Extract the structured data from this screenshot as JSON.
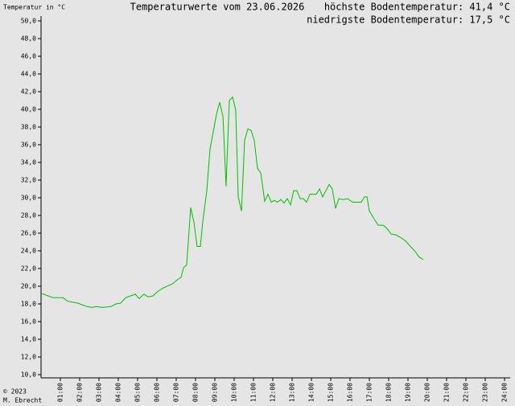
{
  "chart_data": {
    "type": "line",
    "title": "Temperaturwerte vom 23.06.2026",
    "y_label": "Temperatur in °C",
    "annotations": [
      "höchste Bodentemperatur: 41,4 °C",
      "niedrigste Bodentemperatur: 17,5 °C"
    ],
    "footer": [
      "© 2023",
      "M. Ebrecht"
    ],
    "xlim": [
      0,
      24
    ],
    "xticks": [
      {
        "value": 1,
        "label": "01:00"
      },
      {
        "value": 2,
        "label": "02:00"
      },
      {
        "value": 3,
        "label": "03:00"
      },
      {
        "value": 4,
        "label": "04:00"
      },
      {
        "value": 5,
        "label": "05:00"
      },
      {
        "value": 6,
        "label": "06:00"
      },
      {
        "value": 7,
        "label": "07:00"
      },
      {
        "value": 8,
        "label": "08:00"
      },
      {
        "value": 9,
        "label": "09:00"
      },
      {
        "value": 10,
        "label": "10:00"
      },
      {
        "value": 11,
        "label": "11:00"
      },
      {
        "value": 12,
        "label": "12:00"
      },
      {
        "value": 13,
        "label": "13:00"
      },
      {
        "value": 14,
        "label": "14:00"
      },
      {
        "value": 15,
        "label": "15:00"
      },
      {
        "value": 16,
        "label": "16:00"
      },
      {
        "value": 17,
        "label": "17:00"
      },
      {
        "value": 18,
        "label": "18:00"
      },
      {
        "value": 19,
        "label": "19:00"
      },
      {
        "value": 20,
        "label": "20:00"
      },
      {
        "value": 21,
        "label": "21:00"
      },
      {
        "value": 22,
        "label": "22:00"
      },
      {
        "value": 23,
        "label": "23:00"
      },
      {
        "value": 24,
        "label": "24:00"
      }
    ],
    "ylim": [
      10,
      50
    ],
    "yticks": [
      {
        "value": 10,
        "label": "10,0"
      },
      {
        "value": 12,
        "label": "12,0"
      },
      {
        "value": 14,
        "label": "14,0"
      },
      {
        "value": 16,
        "label": "16,0"
      },
      {
        "value": 18,
        "label": "18,0"
      },
      {
        "value": 20,
        "label": "20,0"
      },
      {
        "value": 22,
        "label": "22,0"
      },
      {
        "value": 24,
        "label": "24,0"
      },
      {
        "value": 26,
        "label": "26,0"
      },
      {
        "value": 28,
        "label": "28,0"
      },
      {
        "value": 30,
        "label": "30,0"
      },
      {
        "value": 32,
        "label": "32,0"
      },
      {
        "value": 34,
        "label": "34,0"
      },
      {
        "value": 36,
        "label": "36,0"
      },
      {
        "value": 38,
        "label": "38,0"
      },
      {
        "value": 40,
        "label": "40,0"
      },
      {
        "value": 42,
        "label": "42,0"
      },
      {
        "value": 44,
        "label": "44,0"
      },
      {
        "value": 46,
        "label": "46,0"
      },
      {
        "value": 48,
        "label": "48,0"
      },
      {
        "value": 50,
        "label": "50,0"
      }
    ],
    "color": "#00c000",
    "x": [
      0,
      0.38,
      0.63,
      1.13,
      1.38,
      1.88,
      2.13,
      2.38,
      2.63,
      2.88,
      3.13,
      3.63,
      3.88,
      4.13,
      4.38,
      4.63,
      4.88,
      5.08,
      5.33,
      5.54,
      5.79,
      6.04,
      6.33,
      6.83,
      7.04,
      7.25,
      7.38,
      7.54,
      7.75,
      7.92,
      8.08,
      8.25,
      8.38,
      8.58,
      8.75,
      8.92,
      9.08,
      9.25,
      9.42,
      9.58,
      9.75,
      9.92,
      10.08,
      10.21,
      10.38,
      10.54,
      10.71,
      10.88,
      11.04,
      11.21,
      11.38,
      11.58,
      11.75,
      11.92,
      12.08,
      12.25,
      12.42,
      12.58,
      12.75,
      12.92,
      13.08,
      13.25,
      13.42,
      13.58,
      13.75,
      13.92,
      14.08,
      14.25,
      14.42,
      14.58,
      14.75,
      14.92,
      15.08,
      15.25,
      15.42,
      15.63,
      15.88,
      16.13,
      16.38,
      16.58,
      16.75,
      16.88,
      17.0,
      17.25,
      17.46,
      17.71,
      17.88,
      18.13,
      18.38,
      18.63,
      18.88,
      19.13,
      19.38,
      19.58,
      19.79
    ],
    "values": [
      19.2,
      18.9,
      18.7,
      18.7,
      18.3,
      18.1,
      17.9,
      17.7,
      17.6,
      17.7,
      17.6,
      17.7,
      18.0,
      18.1,
      18.7,
      18.9,
      19.1,
      18.6,
      19.1,
      18.8,
      18.9,
      19.4,
      19.8,
      20.3,
      20.7,
      21.0,
      22.1,
      22.4,
      28.9,
      27.2,
      24.5,
      24.5,
      27.4,
      30.7,
      35.5,
      37.5,
      39.4,
      40.8,
      39.2,
      31.3,
      41.0,
      41.4,
      39.9,
      30.1,
      28.5,
      36.5,
      37.8,
      37.6,
      36.5,
      33.3,
      32.8,
      29.6,
      30.4,
      29.5,
      29.7,
      29.5,
      29.8,
      29.4,
      29.9,
      29.2,
      30.8,
      30.8,
      29.9,
      29.9,
      29.5,
      30.4,
      30.4,
      30.4,
      31.0,
      30.1,
      30.8,
      31.5,
      31.0,
      28.8,
      29.9,
      29.8,
      29.9,
      29.5,
      29.5,
      29.5,
      30.1,
      30.1,
      28.5,
      27.6,
      26.9,
      26.9,
      26.6,
      25.9,
      25.8,
      25.5,
      25.1,
      24.5,
      23.9,
      23.3,
      23.0
    ]
  }
}
